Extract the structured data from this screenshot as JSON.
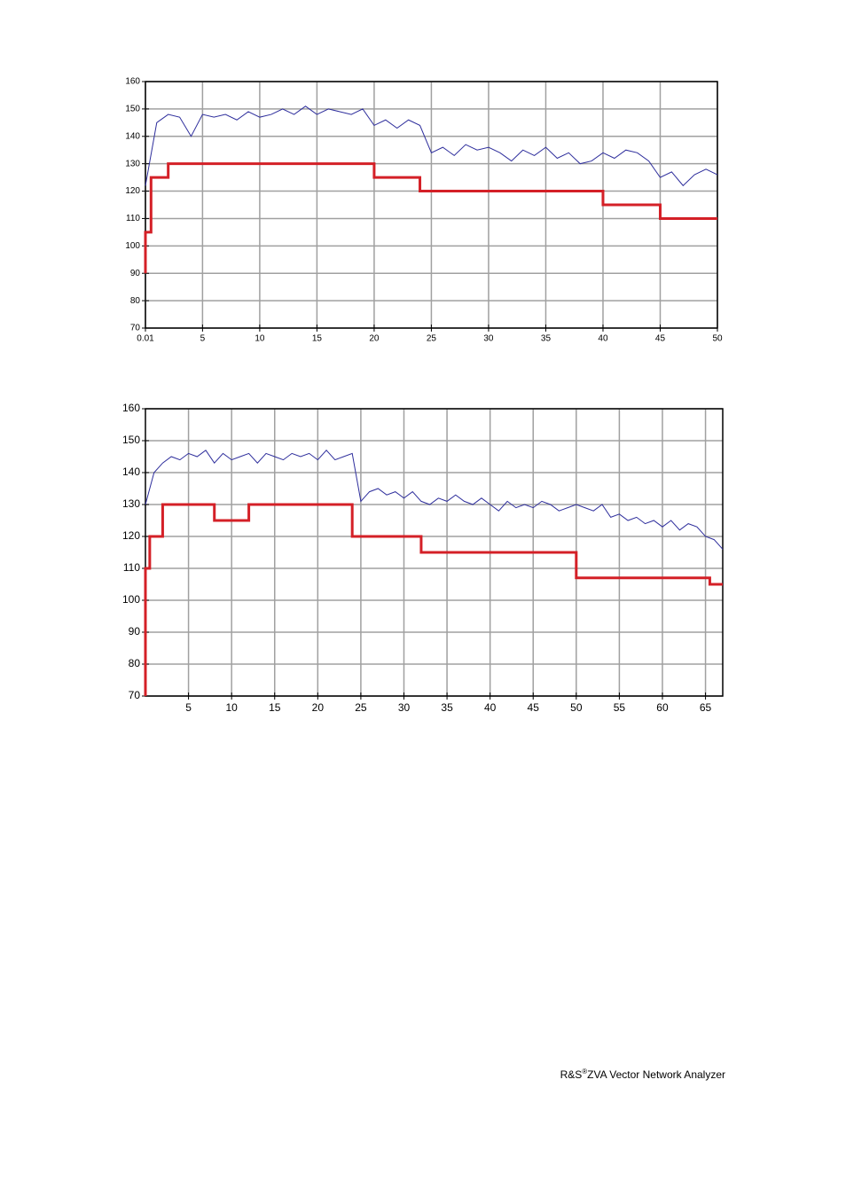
{
  "chart_data": [
    {
      "type": "line",
      "xlim": [
        0.01,
        50
      ],
      "ylim": [
        70,
        160
      ],
      "xticks": [
        0.01,
        5,
        10,
        15,
        20,
        25,
        30,
        35,
        40,
        45,
        50
      ],
      "yticks": [
        70,
        80,
        90,
        100,
        110,
        120,
        130,
        140,
        150,
        160
      ],
      "grid": true,
      "series": [
        {
          "color": "#2e2e9c",
          "x": [
            0.01,
            1,
            2,
            3,
            4,
            5,
            6,
            7,
            8,
            9,
            10,
            11,
            12,
            13,
            14,
            15,
            16,
            17,
            18,
            19,
            20,
            21,
            22,
            23,
            24,
            25,
            26,
            27,
            28,
            29,
            30,
            31,
            32,
            33,
            34,
            35,
            36,
            37,
            38,
            39,
            40,
            41,
            42,
            43,
            44,
            45,
            46,
            47,
            48,
            49,
            50
          ],
          "values": [
            122,
            145,
            148,
            147,
            140,
            148,
            147,
            148,
            146,
            149,
            147,
            148,
            150,
            148,
            151,
            148,
            150,
            149,
            148,
            150,
            144,
            146,
            143,
            146,
            144,
            134,
            136,
            133,
            137,
            135,
            136,
            134,
            131,
            135,
            133,
            136,
            132,
            134,
            130,
            131,
            134,
            132,
            135,
            134,
            131,
            125,
            127,
            122,
            126,
            128,
            126
          ]
        },
        {
          "color": "#d42027",
          "x": [
            0.01,
            0.01,
            0.5,
            0.5,
            2,
            2,
            20,
            20,
            24,
            24,
            40,
            40,
            45,
            45,
            50
          ],
          "values": [
            90,
            105,
            105,
            125,
            125,
            130,
            130,
            125,
            125,
            120,
            120,
            115,
            115,
            110,
            110
          ]
        }
      ]
    },
    {
      "type": "line",
      "xlim": [
        0,
        67
      ],
      "ylim": [
        70,
        160
      ],
      "xticks": [
        5,
        10,
        15,
        20,
        25,
        30,
        35,
        40,
        45,
        50,
        55,
        60,
        65
      ],
      "yticks": [
        70,
        80,
        90,
        100,
        110,
        120,
        130,
        140,
        150,
        160
      ],
      "grid": true,
      "series": [
        {
          "color": "#2e2e9c",
          "x": [
            0,
            1,
            2,
            3,
            4,
            5,
            6,
            7,
            8,
            9,
            10,
            11,
            12,
            13,
            14,
            15,
            16,
            17,
            18,
            19,
            20,
            21,
            22,
            23,
            24,
            25,
            26,
            27,
            28,
            29,
            30,
            31,
            32,
            33,
            34,
            35,
            36,
            37,
            38,
            39,
            40,
            41,
            42,
            43,
            44,
            45,
            46,
            47,
            48,
            49,
            50,
            51,
            52,
            53,
            54,
            55,
            56,
            57,
            58,
            59,
            60,
            61,
            62,
            63,
            64,
            65,
            66,
            67
          ],
          "values": [
            130,
            140,
            143,
            145,
            144,
            146,
            145,
            147,
            143,
            146,
            144,
            145,
            146,
            143,
            146,
            145,
            144,
            146,
            145,
            146,
            144,
            147,
            144,
            145,
            146,
            131,
            134,
            135,
            133,
            134,
            132,
            134,
            131,
            130,
            132,
            131,
            133,
            131,
            130,
            132,
            130,
            128,
            131,
            129,
            130,
            129,
            131,
            130,
            128,
            129,
            130,
            129,
            128,
            130,
            126,
            127,
            125,
            126,
            124,
            125,
            123,
            125,
            122,
            124,
            123,
            120,
            119,
            116
          ]
        },
        {
          "color": "#d42027",
          "x": [
            0,
            0,
            0.5,
            0.5,
            2,
            2,
            8,
            8,
            12,
            12,
            24,
            24,
            32,
            32,
            50,
            50,
            65.5,
            65.5,
            67
          ],
          "values": [
            70,
            110,
            110,
            120,
            120,
            130,
            130,
            125,
            125,
            130,
            130,
            120,
            120,
            115,
            115,
            107,
            107,
            105,
            105
          ]
        }
      ]
    }
  ],
  "footer": {
    "brand": "R&S",
    "mark": "®",
    "product": "ZVA Vector Network Analyzer"
  }
}
